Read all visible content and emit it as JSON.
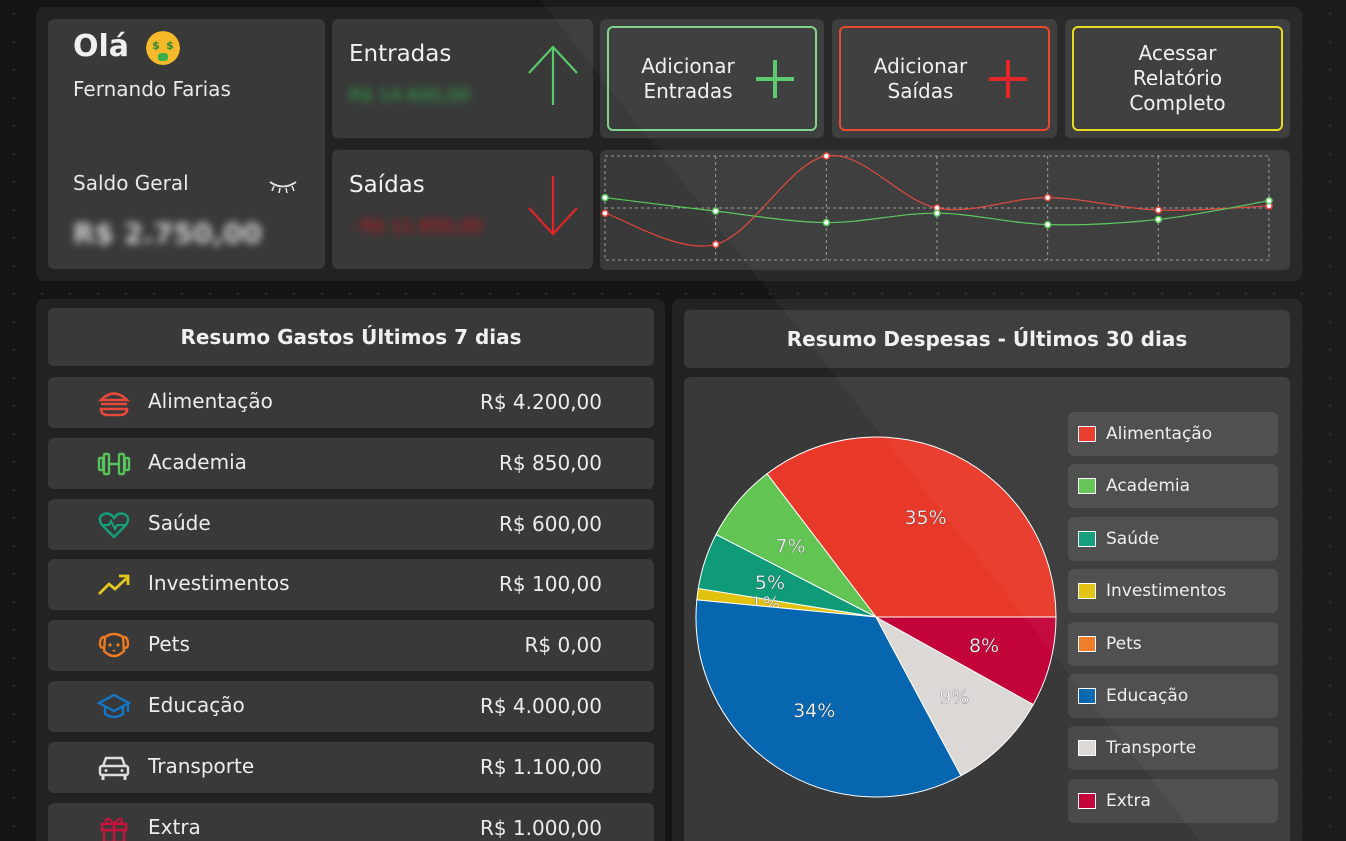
{
  "greeting": {
    "hello": "Olá",
    "name": "Fernando Farias"
  },
  "balance": {
    "label": "Saldo Geral",
    "value": "R$ 2.750,00"
  },
  "income": {
    "title": "Entradas",
    "value": "R$ 14.600,00"
  },
  "expenses": {
    "title": "Saídas",
    "value": "- R$ 11.850,00"
  },
  "actions": {
    "add_income": "Adicionar Entradas",
    "add_expense": "Adicionar Saídas",
    "report": "Acessar Relatório Completo"
  },
  "colors": {
    "income": "#59c96b",
    "expense": "#e8362a",
    "report": "#e8d81a"
  },
  "trend_chart": {
    "series": [
      {
        "values": [
          0.45,
          0.15,
          1.0,
          0.5,
          0.6,
          0.48,
          0.52
        ],
        "color": "#e0443a"
      },
      {
        "values": [
          0.6,
          0.47,
          0.36,
          0.45,
          0.34,
          0.39,
          0.57
        ],
        "color": "#58c85a"
      }
    ]
  },
  "week_summary": {
    "title": "Resumo Gastos Últimos 7 dias",
    "rows": [
      {
        "label": "Alimentação",
        "value": "R$ 4.200,00",
        "icon": "burger-icon",
        "color": "#e8493a"
      },
      {
        "label": "Academia",
        "value": "R$ 850,00",
        "icon": "dumbbell-icon",
        "color": "#56c45a"
      },
      {
        "label": "Saúde",
        "value": "R$ 600,00",
        "icon": "heart-pulse-icon",
        "color": "#13a07d"
      },
      {
        "label": "Investimentos",
        "value": "R$ 100,00",
        "icon": "trend-up-icon",
        "color": "#e4c620"
      },
      {
        "label": "Pets",
        "value": "R$ 0,00",
        "icon": "dog-icon",
        "color": "#ee7a22"
      },
      {
        "label": "Educação",
        "value": "R$ 4.000,00",
        "icon": "graduation-cap-icon",
        "color": "#1477c6"
      },
      {
        "label": "Transporte",
        "value": "R$ 1.100,00",
        "icon": "car-icon",
        "color": "#dedede"
      },
      {
        "label": "Extra",
        "value": "R$ 1.000,00",
        "icon": "gift-icon",
        "color": "#c8143c"
      }
    ]
  },
  "month_summary": {
    "title": "Resumo Despesas - Últimos 30 dias"
  },
  "chart_data": {
    "type": "pie",
    "categories": [
      "Alimentação",
      "Academia",
      "Saúde",
      "Investimentos",
      "Pets",
      "Educação",
      "Transporte",
      "Extra"
    ],
    "values": [
      35,
      7,
      5,
      1,
      0,
      34,
      9,
      8
    ],
    "labels": [
      "35%",
      "7%",
      "5%",
      "1%",
      "",
      "34%",
      "9%",
      "8%"
    ],
    "colors": [
      "#e8382a",
      "#62c453",
      "#0f9b78",
      "#e2c20e",
      "#ee7a22",
      "#0766b0",
      "#dcd8d6",
      "#c2043a"
    ],
    "legend": "right"
  }
}
